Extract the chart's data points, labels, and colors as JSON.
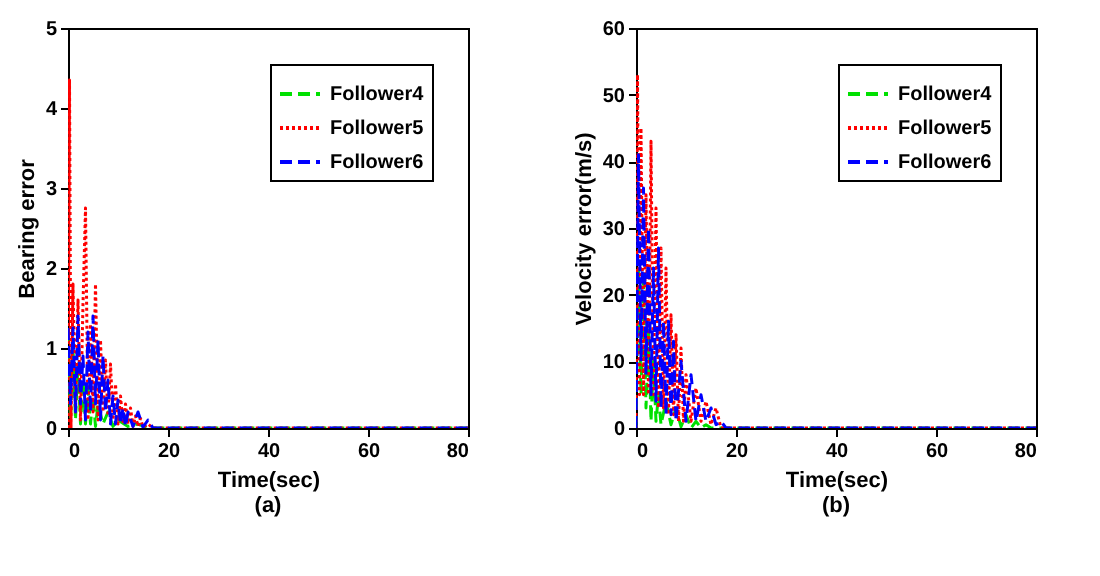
{
  "chart_data": [
    {
      "type": "line",
      "xlabel": "Time(sec)",
      "ylabel": "Bearing error",
      "annotations": [
        "(a)"
      ],
      "xlim": [
        0,
        80
      ],
      "ylim": [
        0,
        5
      ],
      "xticks": [
        0,
        20,
        40,
        60,
        80
      ],
      "yticks": [
        0,
        1,
        2,
        3,
        4,
        5
      ],
      "legend": "top right",
      "series": [
        {
          "name": "Follower4",
          "color": "#00e000",
          "line_style": "dashed",
          "x": [
            0,
            0.5,
            1,
            1.5,
            2,
            2.5,
            3,
            3.5,
            4,
            4.5,
            5,
            5.5,
            6,
            7,
            8,
            9,
            10,
            12,
            14,
            16,
            80
          ],
          "values": [
            1.2,
            0.1,
            1.0,
            0.1,
            0.8,
            0.05,
            0.6,
            0.05,
            0.5,
            0.05,
            0.4,
            0.02,
            0.3,
            0.05,
            0.2,
            0.02,
            0.1,
            0.02,
            0.05,
            0,
            0
          ]
        },
        {
          "name": "Follower5",
          "color": "#ff0000",
          "line_style": "dotted",
          "x": [
            0,
            0.3,
            0.6,
            1,
            1.5,
            2,
            2.5,
            3,
            3.5,
            4,
            4.5,
            5,
            5.5,
            6,
            6.5,
            7,
            7.5,
            8,
            8.5,
            9,
            9.5,
            10,
            10.5,
            11,
            11.5,
            12,
            12.5,
            13,
            13.5,
            14,
            14.5,
            15,
            16,
            17,
            80
          ],
          "values": [
            0,
            4.35,
            0,
            1.8,
            0.2,
            1.6,
            0.1,
            1.55,
            2.75,
            0.1,
            1.3,
            0.2,
            1.8,
            0.1,
            1.1,
            0.2,
            0.85,
            0.15,
            0.8,
            0.1,
            0.55,
            0.05,
            0.4,
            0.05,
            0.3,
            0.05,
            0.25,
            0.02,
            0.15,
            0.02,
            0.12,
            0.01,
            0.05,
            0,
            0
          ]
        },
        {
          "name": "Follower6",
          "color": "#0000ff",
          "line_style": "dashed",
          "x": [
            0,
            0.5,
            1,
            1.5,
            2,
            2.5,
            3,
            3.5,
            4,
            4.5,
            5,
            5.5,
            6,
            6.5,
            7,
            7.5,
            8,
            8.5,
            9,
            9.5,
            10,
            10.5,
            11,
            11.5,
            12,
            13,
            14,
            15,
            16,
            17,
            80
          ],
          "values": [
            1.25,
            0.3,
            1.25,
            0.2,
            1.4,
            0.3,
            0.9,
            0.1,
            1.2,
            0.2,
            1.4,
            0.3,
            1.1,
            0.1,
            0.9,
            0.2,
            0.6,
            0.05,
            0.4,
            0.05,
            0.35,
            0.05,
            0.25,
            0.02,
            0.2,
            0.02,
            0.2,
            0.01,
            0.1,
            0,
            0
          ]
        }
      ]
    },
    {
      "type": "line",
      "xlabel": "Time(sec)",
      "ylabel": "Velocity error(m/s)",
      "annotations": [
        "(b)"
      ],
      "xlim": [
        0,
        80
      ],
      "ylim": [
        0,
        60
      ],
      "xticks": [
        0,
        20,
        40,
        60,
        80
      ],
      "yticks": [
        0,
        10,
        20,
        30,
        40,
        50,
        60
      ],
      "legend": "top right",
      "series": [
        {
          "name": "Follower4",
          "color": "#00e000",
          "line_style": "dashed",
          "x": [
            0,
            0.5,
            1,
            1.5,
            2,
            2.5,
            3,
            3.5,
            4,
            4.5,
            5,
            6,
            7,
            8,
            9,
            10,
            11,
            12,
            13,
            14,
            15,
            80
          ],
          "values": [
            0,
            24,
            5,
            22,
            3,
            15,
            1,
            10,
            1,
            5,
            0.5,
            4,
            0.5,
            3,
            0.2,
            2,
            0,
            1,
            0,
            0.5,
            0,
            0
          ]
        },
        {
          "name": "Follower5",
          "color": "#ff0000",
          "line_style": "dotted",
          "x": [
            0,
            0.3,
            0.7,
            1,
            1.5,
            2,
            2.5,
            3,
            3.5,
            4,
            4.5,
            5,
            5.5,
            6,
            6.5,
            7,
            7.5,
            8,
            8.5,
            9,
            9.5,
            10,
            11,
            12,
            13,
            14,
            15,
            16,
            17,
            80
          ],
          "values": [
            0,
            53,
            5,
            45,
            5,
            35,
            5,
            43,
            5,
            33,
            3,
            27,
            3,
            24,
            2,
            17,
            2,
            14,
            1,
            12,
            1,
            8,
            1,
            6,
            1,
            4,
            0.5,
            3,
            0,
            0
          ]
        },
        {
          "name": "Follower6",
          "color": "#0000ff",
          "line_style": "dashed",
          "x": [
            0,
            0.5,
            1,
            1.5,
            2,
            2.5,
            3,
            3.5,
            4,
            4.5,
            5,
            5.5,
            6,
            6.5,
            7,
            7.5,
            8,
            9,
            10,
            11,
            12,
            13,
            14,
            15,
            16,
            17,
            18,
            80
          ],
          "values": [
            0,
            41,
            10,
            36,
            8,
            30,
            5,
            24,
            4,
            27,
            3,
            16,
            2,
            16,
            2,
            13,
            1,
            10,
            1,
            8,
            1,
            5,
            1,
            3,
            0.5,
            1,
            0,
            0
          ]
        }
      ]
    }
  ]
}
